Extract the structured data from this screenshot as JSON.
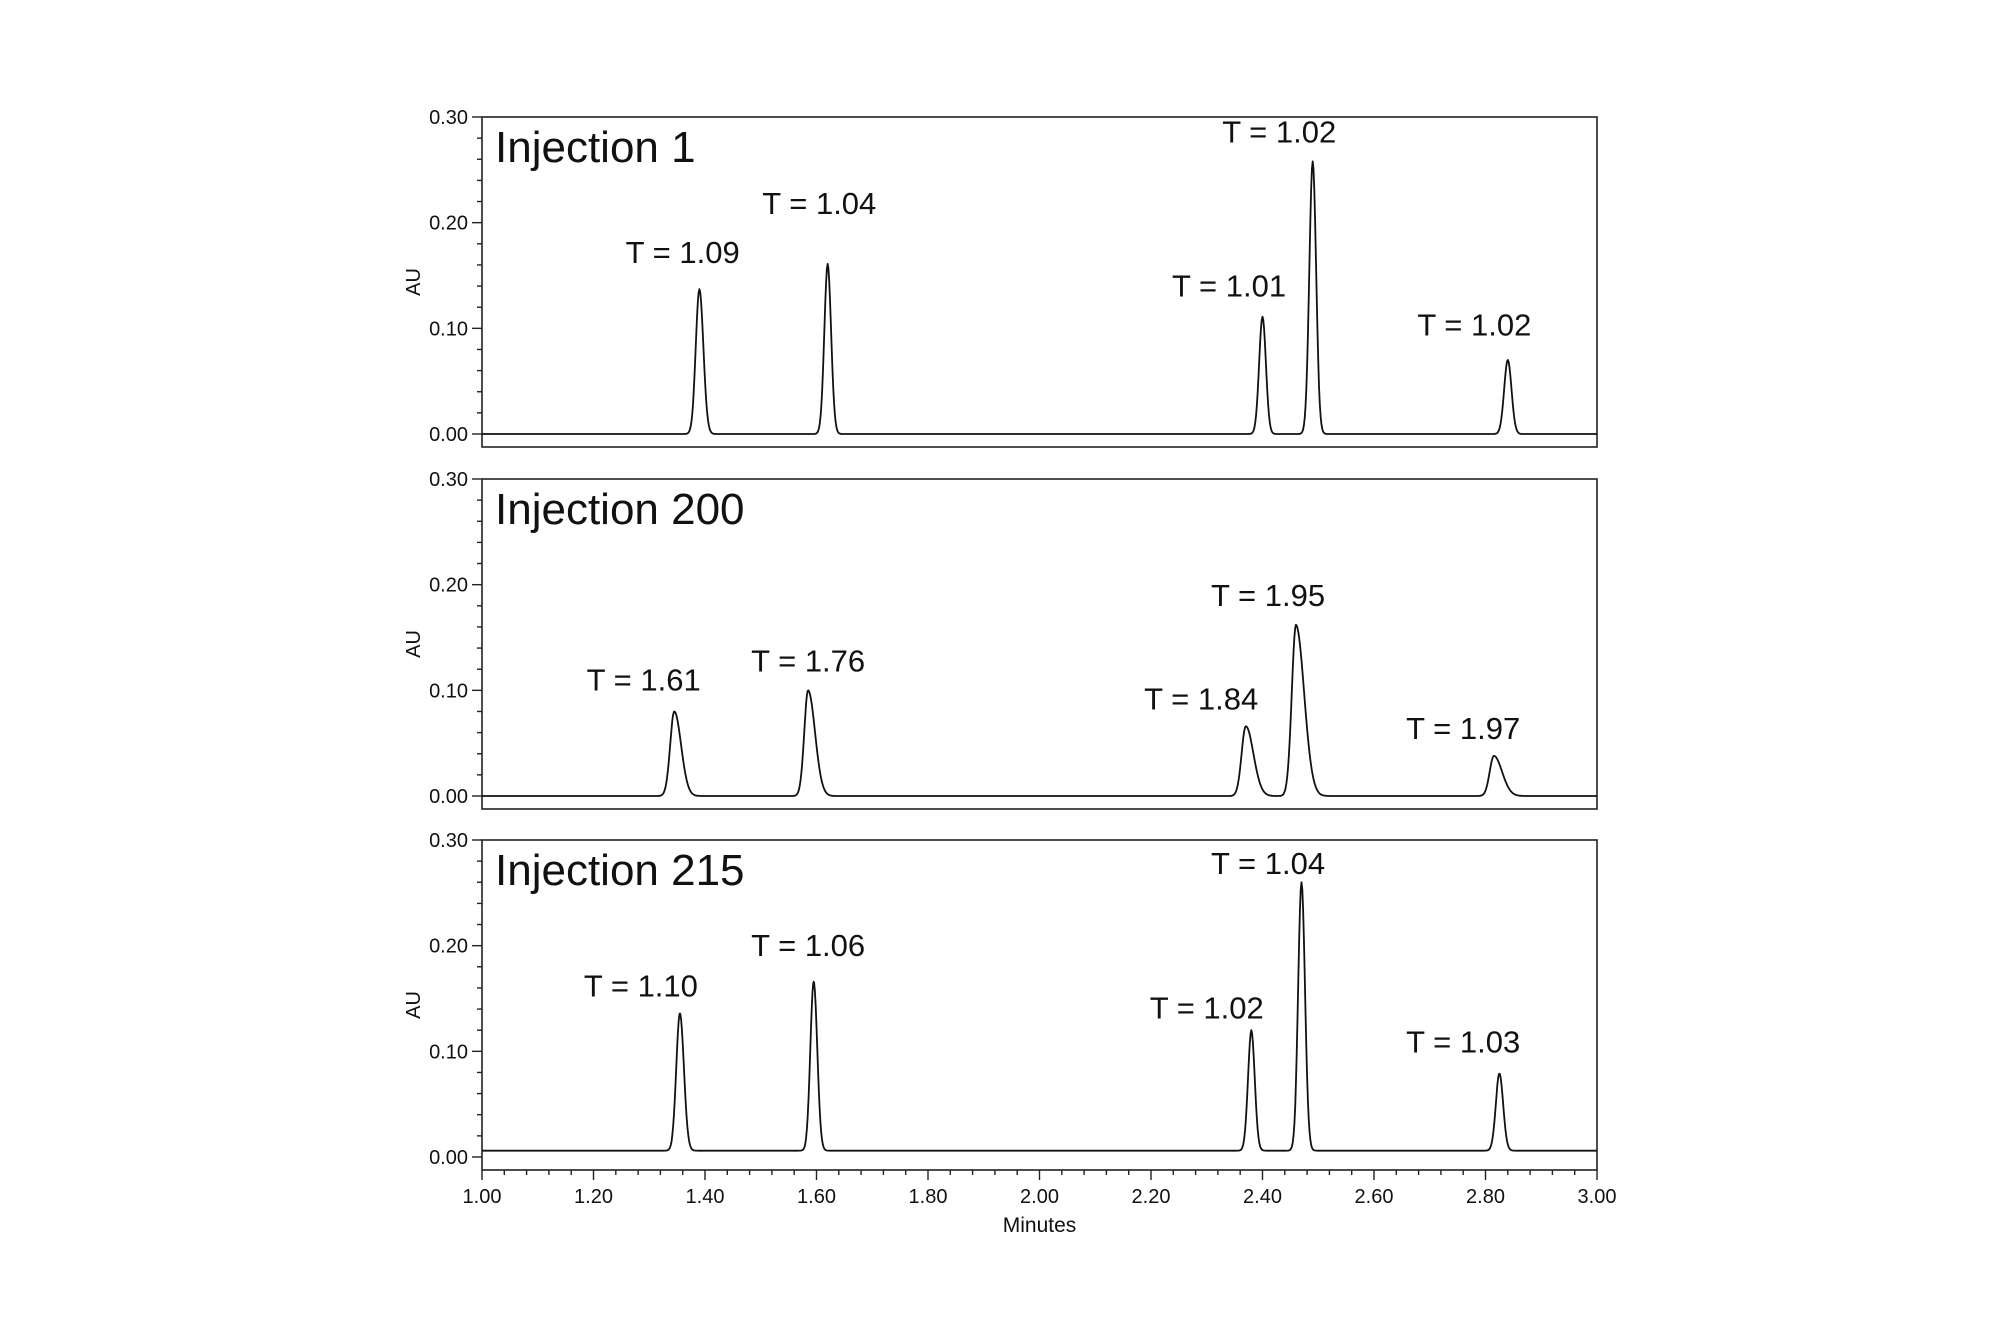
{
  "chart_data": {
    "type": "line",
    "xlabel": "Minutes",
    "xlim": [
      1.0,
      3.0
    ],
    "x_ticks": [
      "1.00",
      "1.20",
      "1.40",
      "1.60",
      "1.80",
      "2.00",
      "2.20",
      "2.40",
      "2.60",
      "2.80",
      "3.00"
    ],
    "ylabel": "AU",
    "ylim": [
      0.0,
      0.3
    ],
    "y_ticks": [
      "0.00",
      "0.10",
      "0.20",
      "0.30"
    ],
    "grid": false,
    "panels": [
      {
        "title": "Injection 1",
        "baseline": 0.0,
        "peaks": [
          {
            "x": 1.39,
            "y": 0.137,
            "width": 0.0065,
            "tailing": 1.09
          },
          {
            "x": 1.62,
            "y": 0.161,
            "width": 0.006,
            "tailing": 1.04
          },
          {
            "x": 2.4,
            "y": 0.111,
            "width": 0.006,
            "tailing": 1.01
          },
          {
            "x": 2.49,
            "y": 0.258,
            "width": 0.006,
            "tailing": 1.02
          },
          {
            "x": 2.84,
            "y": 0.07,
            "width": 0.0065,
            "tailing": 1.02
          }
        ],
        "labels": [
          {
            "text": "T = 1.09",
            "x": 1.36,
            "y": 0.162
          },
          {
            "text": "T = 1.04",
            "x": 1.605,
            "y": 0.208
          },
          {
            "text": "T = 1.01",
            "x": 2.34,
            "y": 0.13
          },
          {
            "text": "T = 1.02",
            "x": 2.43,
            "y": 0.276
          },
          {
            "text": "T = 1.02",
            "x": 2.78,
            "y": 0.093
          }
        ]
      },
      {
        "title": "Injection 200",
        "baseline": 0.0,
        "peaks": [
          {
            "x": 1.345,
            "y": 0.08,
            "width": 0.0075,
            "tailing": 1.61
          },
          {
            "x": 1.585,
            "y": 0.1,
            "width": 0.007,
            "tailing": 1.76
          },
          {
            "x": 2.37,
            "y": 0.066,
            "width": 0.0075,
            "tailing": 1.84
          },
          {
            "x": 2.46,
            "y": 0.162,
            "width": 0.0075,
            "tailing": 1.95
          },
          {
            "x": 2.815,
            "y": 0.038,
            "width": 0.0075,
            "tailing": 1.97
          }
        ],
        "labels": [
          {
            "text": "T = 1.61",
            "x": 1.29,
            "y": 0.1
          },
          {
            "text": "T = 1.76",
            "x": 1.585,
            "y": 0.118
          },
          {
            "text": "T = 1.84",
            "x": 2.29,
            "y": 0.082
          },
          {
            "text": "T = 1.95",
            "x": 2.41,
            "y": 0.18
          },
          {
            "text": "T = 1.97",
            "x": 2.76,
            "y": 0.054
          }
        ]
      },
      {
        "title": "Injection 215",
        "baseline": 0.006,
        "peaks": [
          {
            "x": 1.355,
            "y": 0.13,
            "width": 0.0065,
            "tailing": 1.1
          },
          {
            "x": 1.595,
            "y": 0.16,
            "width": 0.006,
            "tailing": 1.06
          },
          {
            "x": 2.38,
            "y": 0.114,
            "width": 0.006,
            "tailing": 1.02
          },
          {
            "x": 2.47,
            "y": 0.254,
            "width": 0.006,
            "tailing": 1.04
          },
          {
            "x": 2.825,
            "y": 0.073,
            "width": 0.0065,
            "tailing": 1.03
          }
        ],
        "labels": [
          {
            "text": "T = 1.10",
            "x": 1.285,
            "y": 0.152
          },
          {
            "text": "T = 1.06",
            "x": 1.585,
            "y": 0.19
          },
          {
            "text": "T = 1.02",
            "x": 2.3,
            "y": 0.131
          },
          {
            "text": "T = 1.04",
            "x": 2.41,
            "y": 0.268
          },
          {
            "text": "T = 1.03",
            "x": 2.76,
            "y": 0.099
          }
        ]
      }
    ]
  }
}
